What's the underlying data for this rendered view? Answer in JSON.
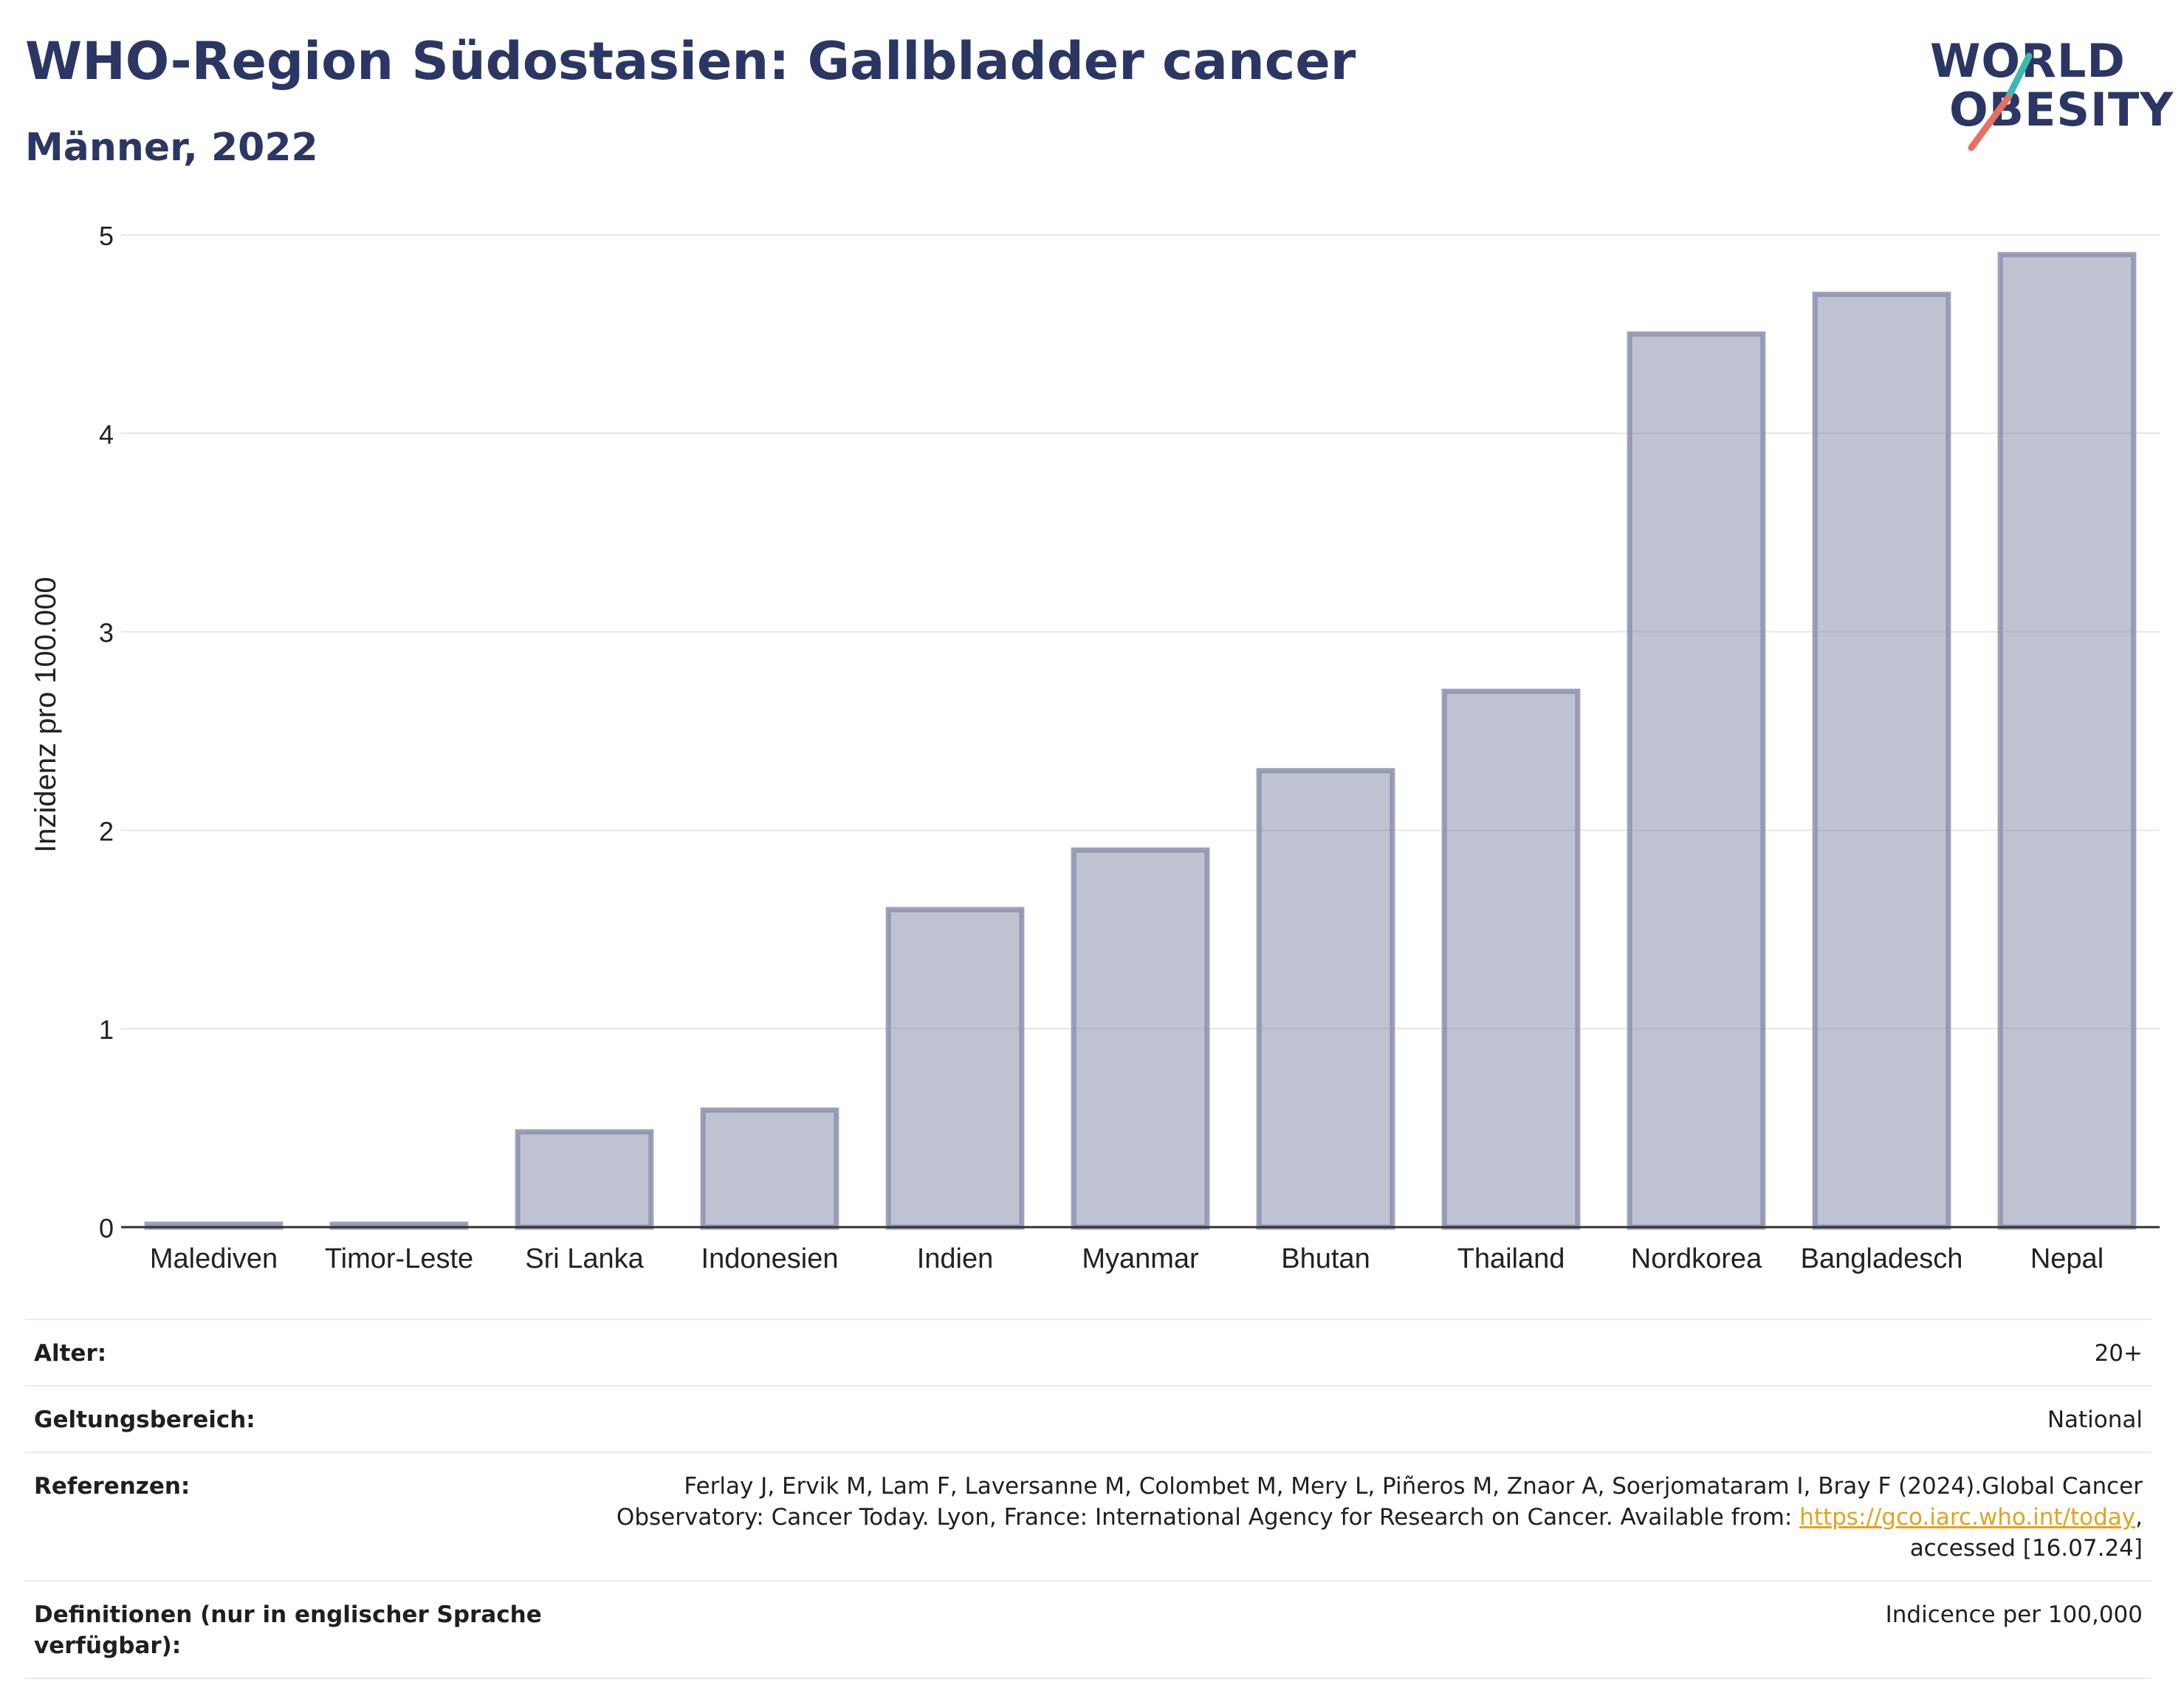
{
  "header": {
    "title": "WHO-Region Südostasien: Gallbladder cancer",
    "subtitle": "Männer, 2022"
  },
  "logo": {
    "line1": "WORLD",
    "line2": "OBESITY",
    "accent_teal": "#3bb9b3",
    "accent_coral": "#e8705e"
  },
  "chart_data": {
    "type": "bar",
    "categories": [
      "Malediven",
      "Timor-Leste",
      "Sri Lanka",
      "Indonesien",
      "Indien",
      "Myanmar",
      "Bhutan",
      "Thailand",
      "Nordkorea",
      "Bangladesch",
      "Nepal"
    ],
    "values": [
      0.0,
      0.0,
      0.48,
      0.59,
      1.6,
      1.9,
      2.3,
      2.7,
      4.5,
      4.7,
      4.9
    ],
    "ylabel": "Inzidenz pro 100.000",
    "ylim": [
      0,
      5
    ],
    "yticks": [
      0,
      1,
      2,
      3,
      4,
      5
    ],
    "grid": true,
    "bar_fill": "#7f86a3",
    "bar_stroke": "#8b91ad"
  },
  "meta": [
    {
      "key": "Alter:",
      "value": "20+"
    },
    {
      "key": "Geltungsbereich:",
      "value": "National"
    },
    {
      "key": "Referenzen:",
      "value_pre": "Ferlay J, Ervik M, Lam F, Laversanne M, Colombet M, Mery L, Piñeros M, Znaor A, Soerjomataram I, Bray F (2024).Global Cancer Observatory: Cancer Today. Lyon, France: International Agency for Research on Cancer. Available from: ",
      "link": "https://gco.iarc.who.int/today",
      "value_post": ", accessed [16.07.24]"
    },
    {
      "key": "Definitionen (nur in englischer Sprache verfügbar):",
      "value": "Indicence per 100,000"
    }
  ]
}
